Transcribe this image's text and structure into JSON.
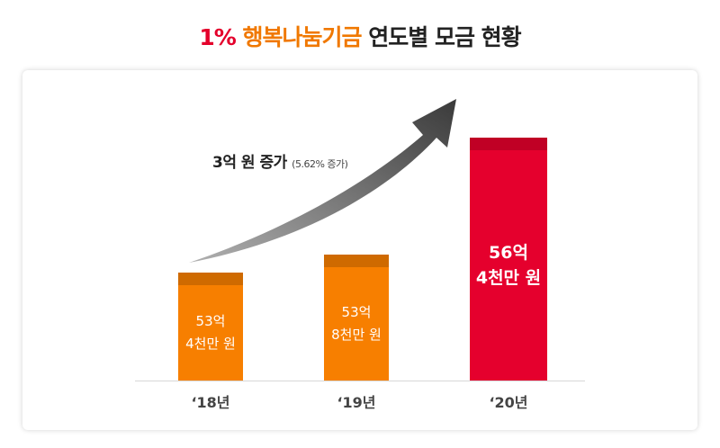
{
  "chart_data": {
    "type": "bar",
    "title": {
      "highlight": "1%",
      "name": "행복나눔기금",
      "rest": "연도별 모금 현황"
    },
    "annotation": {
      "text": "3억 원 증가",
      "detail": "(5.62% 증가)"
    },
    "categories": [
      "‘18년",
      "‘19년",
      "‘20년"
    ],
    "values": [
      53.4,
      53.8,
      56.4
    ],
    "value_labels": [
      "53억\n4천만 원",
      "53억\n8천만 원",
      "56억\n4천만 원"
    ],
    "colors": [
      "#f77f00",
      "#f77f00",
      "#e5002d"
    ],
    "ylim": [
      51,
      57
    ]
  }
}
